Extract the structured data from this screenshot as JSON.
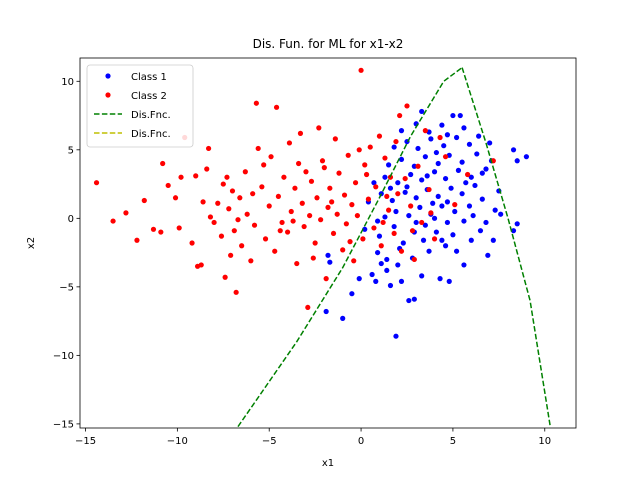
{
  "chart_data": {
    "type": "scatter",
    "title": "Dis. Fun. for ML for x1-x2",
    "xlabel": "x1",
    "ylabel": "x2",
    "xlim": [
      -15.3,
      11.7
    ],
    "ylim": [
      -15.3,
      11.7
    ],
    "xticks": [
      -15,
      -10,
      -5,
      0,
      5,
      10
    ],
    "yticks": [
      -15,
      -10,
      -5,
      0,
      5,
      10
    ],
    "grid": false,
    "legend_position": "top-left",
    "series": [
      {
        "name": "Class 1",
        "kind": "points",
        "color": "#0000ff",
        "marker": "dot",
        "points": [
          [
            -1.9,
            -6.8
          ],
          [
            -1.0,
            -7.3
          ],
          [
            1.9,
            -8.6
          ],
          [
            -0.5,
            -5.5
          ],
          [
            0.8,
            -4.6
          ],
          [
            1.6,
            -4.9
          ],
          [
            2.6,
            -6.0
          ],
          [
            2.9,
            -5.9
          ],
          [
            -1.7,
            -3.2
          ],
          [
            -1.8,
            -2.7
          ],
          [
            -0.1,
            -4.4
          ],
          [
            0.6,
            -4.1
          ],
          [
            1.4,
            -3.8
          ],
          [
            2.2,
            -4.6
          ],
          [
            3.3,
            -4.2
          ],
          [
            4.3,
            -4.4
          ],
          [
            4.8,
            -4.6
          ],
          [
            5.6,
            -3.4
          ],
          [
            0.9,
            -2.5
          ],
          [
            1.4,
            -3.0
          ],
          [
            2.1,
            -2.2
          ],
          [
            2.8,
            -2.9
          ],
          [
            3.7,
            -2.4
          ],
          [
            4.4,
            -1.6
          ],
          [
            5.2,
            -2.4
          ],
          [
            6.0,
            -1.6
          ],
          [
            6.9,
            -2.7
          ],
          [
            7.2,
            -1.6
          ],
          [
            8.3,
            -0.9
          ],
          [
            8.5,
            -0.4
          ],
          [
            1.0,
            -1.3
          ],
          [
            1.8,
            -0.6
          ],
          [
            2.9,
            -1.0
          ],
          [
            3.5,
            -0.5
          ],
          [
            4.1,
            -1.0
          ],
          [
            4.7,
            -0.3
          ],
          [
            5.6,
            -0.2
          ],
          [
            6.5,
            -0.9
          ],
          [
            7.6,
            0.3
          ],
          [
            1.3,
            0.1
          ],
          [
            1.9,
            0.5
          ],
          [
            2.6,
            0.2
          ],
          [
            3.2,
            0.8
          ],
          [
            3.8,
            0.3
          ],
          [
            4.4,
            0.9
          ],
          [
            5.1,
            0.5
          ],
          [
            5.9,
            0.9
          ],
          [
            6.6,
            1.4
          ],
          [
            7.3,
            0.6
          ],
          [
            0.4,
            1.2
          ],
          [
            1.1,
            1.8
          ],
          [
            1.7,
            1.3
          ],
          [
            2.4,
            1.9
          ],
          [
            3.0,
            1.5
          ],
          [
            3.6,
            2.1
          ],
          [
            4.2,
            1.6
          ],
          [
            4.9,
            2.2
          ],
          [
            5.5,
            1.8
          ],
          [
            6.2,
            2.4
          ],
          [
            7.5,
            2.0
          ],
          [
            0.7,
            2.6
          ],
          [
            1.3,
            3.0
          ],
          [
            2.0,
            2.6
          ],
          [
            2.7,
            3.2
          ],
          [
            3.3,
            2.8
          ],
          [
            4.0,
            3.4
          ],
          [
            4.6,
            2.9
          ],
          [
            5.3,
            3.5
          ],
          [
            6.0,
            3.0
          ],
          [
            6.8,
            3.6
          ],
          [
            1.5,
            3.9
          ],
          [
            2.2,
            4.3
          ],
          [
            2.9,
            3.8
          ],
          [
            3.5,
            4.5
          ],
          [
            4.2,
            4.0
          ],
          [
            4.8,
            4.6
          ],
          [
            5.5,
            4.1
          ],
          [
            6.3,
            4.7
          ],
          [
            7.1,
            4.2
          ],
          [
            8.3,
            5.0
          ],
          [
            9.0,
            4.5
          ],
          [
            1.8,
            5.2
          ],
          [
            2.5,
            5.6
          ],
          [
            3.1,
            5.1
          ],
          [
            3.8,
            5.8
          ],
          [
            4.5,
            5.3
          ],
          [
            5.2,
            5.9
          ],
          [
            5.9,
            5.4
          ],
          [
            7.0,
            5.5
          ],
          [
            8.5,
            4.2
          ],
          [
            2.2,
            6.4
          ],
          [
            3.0,
            6.9
          ],
          [
            3.7,
            6.3
          ],
          [
            4.4,
            6.8
          ],
          [
            5.0,
            7.5
          ],
          [
            5.6,
            6.6
          ],
          [
            5.4,
            7.5
          ],
          [
            3.3,
            7.8
          ],
          [
            4.7,
            6.1
          ],
          [
            6.4,
            6.0
          ],
          [
            0.2,
            -0.8
          ],
          [
            0.9,
            -0.2
          ],
          [
            2.3,
            -1.8
          ],
          [
            3.0,
            -0.3
          ],
          [
            4.0,
            0.0
          ],
          [
            5.0,
            -1.2
          ],
          [
            6.1,
            0.2
          ],
          [
            6.8,
            -0.3
          ],
          [
            2.5,
            2.3
          ],
          [
            3.9,
            1.1
          ],
          [
            4.7,
            1.2
          ],
          [
            5.7,
            2.6
          ],
          [
            1.6,
            2.2
          ],
          [
            3.4,
            -1.6
          ],
          [
            4.6,
            -2.0
          ],
          [
            2.0,
            -3.4
          ],
          [
            3.6,
            3.1
          ],
          [
            4.1,
            4.8
          ],
          [
            6.6,
            3.3
          ],
          [
            1.1,
            -3.3
          ]
        ]
      },
      {
        "name": "Class 2",
        "kind": "points",
        "color": "#ff0000",
        "marker": "dot",
        "points": [
          [
            -14.4,
            2.6
          ],
          [
            -13.5,
            -0.2
          ],
          [
            -12.8,
            0.4
          ],
          [
            -12.2,
            -1.6
          ],
          [
            -11.8,
            1.3
          ],
          [
            -11.3,
            -0.8
          ],
          [
            -10.9,
            -1.0
          ],
          [
            -10.8,
            4.0
          ],
          [
            -10.5,
            2.4
          ],
          [
            -10.1,
            1.5
          ],
          [
            -9.9,
            -0.7
          ],
          [
            -9.8,
            3.0
          ],
          [
            -9.6,
            5.9
          ],
          [
            -9.2,
            -1.8
          ],
          [
            -9.0,
            3.1
          ],
          [
            -8.9,
            -3.5
          ],
          [
            -8.7,
            -3.4
          ],
          [
            -8.6,
            1.2
          ],
          [
            -8.4,
            3.6
          ],
          [
            -8.2,
            0.1
          ],
          [
            -8.0,
            -0.3
          ],
          [
            -7.8,
            1.1
          ],
          [
            -7.6,
            -1.3
          ],
          [
            -7.5,
            2.5
          ],
          [
            -7.4,
            -4.3
          ],
          [
            -7.2,
            0.7
          ],
          [
            -7.1,
            -2.7
          ],
          [
            -7.0,
            2.0
          ],
          [
            -6.9,
            -0.9
          ],
          [
            -6.8,
            -5.4
          ],
          [
            -6.6,
            1.5
          ],
          [
            -6.5,
            -2.0
          ],
          [
            -6.3,
            3.4
          ],
          [
            -6.2,
            0.3
          ],
          [
            -6.0,
            -3.1
          ],
          [
            -5.9,
            1.8
          ],
          [
            -5.8,
            -0.5
          ],
          [
            -5.7,
            8.4
          ],
          [
            -5.6,
            5.1
          ],
          [
            -5.4,
            2.3
          ],
          [
            -5.2,
            -1.5
          ],
          [
            -5.0,
            0.9
          ],
          [
            -4.9,
            4.5
          ],
          [
            -4.7,
            -2.4
          ],
          [
            -4.6,
            8.1
          ],
          [
            -4.5,
            1.6
          ],
          [
            -4.3,
            -0.3
          ],
          [
            -4.2,
            3.0
          ],
          [
            -4.0,
            -1.0
          ],
          [
            -3.9,
            5.5
          ],
          [
            -3.8,
            0.5
          ],
          [
            -3.6,
            2.2
          ],
          [
            -3.5,
            -3.3
          ],
          [
            -3.4,
            4.0
          ],
          [
            -3.2,
            1.1
          ],
          [
            -3.1,
            -0.6
          ],
          [
            -3.0,
            3.4
          ],
          [
            -2.9,
            -6.5
          ],
          [
            -2.8,
            0.2
          ],
          [
            -2.7,
            2.7
          ],
          [
            -2.5,
            -1.8
          ],
          [
            -2.4,
            1.5
          ],
          [
            -2.3,
            6.6
          ],
          [
            -2.2,
            -0.1
          ],
          [
            -2.0,
            3.7
          ],
          [
            -1.9,
            -4.4
          ],
          [
            -1.8,
            0.8
          ],
          [
            -1.7,
            2.2
          ],
          [
            -1.5,
            -1.1
          ],
          [
            -1.4,
            5.8
          ],
          [
            -1.3,
            0.3
          ],
          [
            -1.2,
            3.3
          ],
          [
            -1.0,
            -2.3
          ],
          [
            -0.9,
            1.7
          ],
          [
            -0.8,
            -0.4
          ],
          [
            -0.7,
            4.6
          ],
          [
            -0.5,
            1.0
          ],
          [
            -0.4,
            -3.1
          ],
          [
            -0.3,
            2.6
          ],
          [
            -0.2,
            0.2
          ],
          [
            0.0,
            10.8
          ],
          [
            0.1,
            -1.5
          ],
          [
            0.2,
            3.9
          ],
          [
            0.4,
            1.4
          ],
          [
            0.5,
            5.2
          ],
          [
            0.7,
            -0.7
          ],
          [
            0.8,
            2.3
          ],
          [
            1.0,
            6.0
          ],
          [
            1.1,
            -2.0
          ],
          [
            1.3,
            4.4
          ],
          [
            1.5,
            0.6
          ],
          [
            1.6,
            3.0
          ],
          [
            1.8,
            -1.1
          ],
          [
            1.9,
            5.6
          ],
          [
            2.0,
            1.8
          ],
          [
            2.2,
            -2.4
          ],
          [
            2.4,
            2.9
          ],
          [
            2.5,
            8.2
          ],
          [
            2.7,
            0.9
          ],
          [
            2.9,
            -3.0
          ],
          [
            3.1,
            3.8
          ],
          [
            3.3,
            -0.3
          ],
          [
            3.5,
            6.4
          ],
          [
            3.7,
            2.1
          ],
          [
            4.0,
            -1.5
          ],
          [
            4.3,
            5.9
          ],
          [
            4.6,
            4.5
          ],
          [
            5.1,
            1.0
          ],
          [
            5.8,
            3.2
          ],
          [
            7.2,
            4.2
          ],
          [
            -8.3,
            5.1
          ],
          [
            -6.7,
            -0.1
          ],
          [
            -5.3,
            3.9
          ],
          [
            -4.4,
            -0.9
          ],
          [
            -3.3,
            6.2
          ],
          [
            -2.6,
            -2.9
          ],
          [
            -1.6,
            1.2
          ],
          [
            -0.6,
            -1.7
          ],
          [
            0.3,
            3.2
          ],
          [
            1.2,
            -0.3
          ],
          [
            2.1,
            7.5
          ],
          [
            2.8,
            -0.9
          ],
          [
            -7.3,
            3.0
          ],
          [
            -3.7,
            -0.2
          ],
          [
            -2.1,
            4.2
          ],
          [
            -0.1,
            5.0
          ],
          [
            1.4,
            1.6
          ],
          [
            3.8,
            0.4
          ]
        ]
      },
      {
        "name": "Dis.Fnc.",
        "kind": "line",
        "color": "#008000",
        "dash": "dashed",
        "points": [
          [
            -6.7,
            -15.2
          ],
          [
            -3.5,
            -9.0
          ],
          [
            -1.0,
            -3.6
          ],
          [
            1.0,
            1.5
          ],
          [
            2.7,
            6.0
          ],
          [
            4.5,
            10.0
          ],
          [
            5.5,
            11.0
          ]
        ]
      },
      {
        "name": "Dis.Fnc.",
        "kind": "line",
        "color": "#008000",
        "dash": "dashed",
        "legend": false,
        "points": [
          [
            5.5,
            11.0
          ],
          [
            6.8,
            5.5
          ],
          [
            8.0,
            0.0
          ],
          [
            9.2,
            -6.0
          ],
          [
            10.3,
            -15.2
          ]
        ]
      },
      {
        "name": "Dis.Fnc.",
        "kind": "line",
        "color": "#bfbf00",
        "dash": "dashed",
        "points": []
      }
    ]
  }
}
